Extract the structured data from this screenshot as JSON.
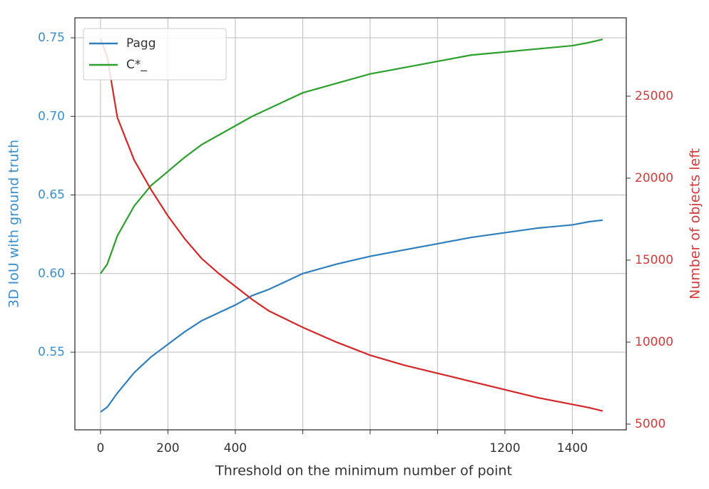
{
  "chart_data": {
    "type": "line",
    "x_label": "Threshold on the minimum number of point",
    "y_label": "3D IoU with ground truth",
    "y2_label": "Number of objects left",
    "x": [
      0,
      20,
      50,
      100,
      150,
      200,
      250,
      300,
      350,
      400,
      450,
      500,
      550,
      600,
      700,
      800,
      900,
      1000,
      1100,
      1200,
      1300,
      1400,
      1450,
      1490
    ],
    "series": [
      {
        "name": "Pagg",
        "color": "#2f7ebd",
        "values": [
          0.512,
          0.515,
          0.524,
          0.537,
          0.547,
          0.555,
          0.563,
          0.57,
          0.575,
          0.58,
          0.586,
          0.59,
          0.595,
          0.6,
          0.606,
          0.611,
          0.615,
          0.619,
          0.623,
          0.626,
          0.629,
          0.631,
          0.633,
          0.634
        ]
      },
      {
        "name": "C*_",
        "color": "#2ca02c",
        "values": [
          0.6,
          0.606,
          0.624,
          0.643,
          0.656,
          0.665,
          0.674,
          0.682,
          0.688,
          0.694,
          0.7,
          0.705,
          0.71,
          0.715,
          0.721,
          0.727,
          0.731,
          0.735,
          0.739,
          0.741,
          0.743,
          0.745,
          0.747,
          0.749
        ]
      },
      {
        "color": "#d62728",
        "axis": "y2",
        "values": [
          28500,
          27400,
          23700,
          21100,
          19300,
          17700,
          16300,
          15100,
          14200,
          13400,
          12600,
          11900,
          11400,
          10900,
          10000,
          9200,
          8600,
          8100,
          7600,
          7100,
          6600,
          6200,
          6000,
          5800
        ]
      }
    ],
    "xlim": [
      -76,
      1560
    ],
    "xticks": [
      0,
      200,
      400,
      {
        "value": 600,
        "label": null
      },
      {
        "value": 800,
        "label": null
      },
      {
        "value": 1000,
        "label": null
      },
      1200,
      1400
    ],
    "ylim": [
      0.5006,
      0.7627
    ],
    "yticks": [
      {
        "value": 0.55,
        "label": "0.55"
      },
      {
        "value": 0.6,
        "label": "0.60"
      },
      {
        "value": 0.65,
        "label": "0.65"
      },
      {
        "value": 0.7,
        "label": "0.70"
      },
      {
        "value": 0.75,
        "label": "0.75"
      }
    ],
    "y2lim": [
      4650,
      29780
    ],
    "y2ticks": [
      5000,
      10000,
      15000,
      20000,
      25000
    ],
    "y_tick_color": "#3a8fd1",
    "y2_tick_color": "#d63a3a",
    "grid": true,
    "legend": "upper left"
  }
}
